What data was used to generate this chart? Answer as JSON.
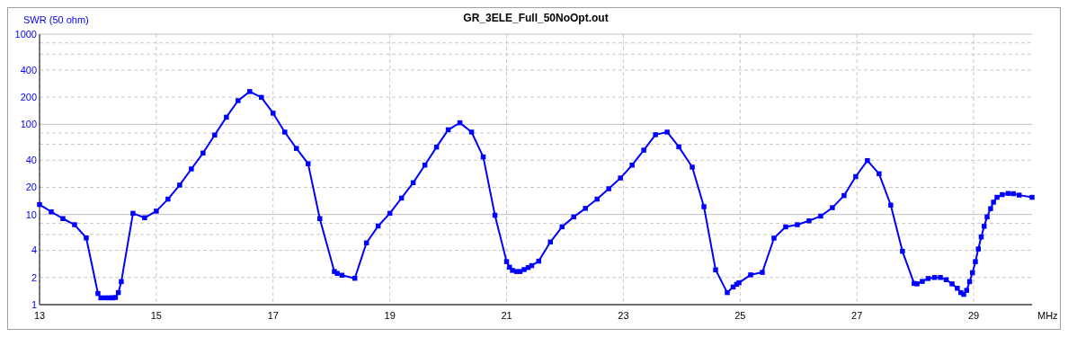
{
  "chart_data": {
    "type": "line",
    "title": "GR_3ELE_Full_50NoOpt.out",
    "xlabel": "MHz",
    "ylabel": "SWR (50 ohm)",
    "log": "y",
    "grid": true,
    "marker": "square",
    "line_style": "solid",
    "xlim": [
      13,
      30
    ],
    "xticks": [
      13,
      15,
      17,
      19,
      21,
      23,
      25,
      27,
      29
    ],
    "ylim": [
      1,
      1000
    ],
    "yticks": [
      1,
      2,
      4,
      {
        "value": 6,
        "label": null
      },
      {
        "value": 8,
        "label": null
      },
      10,
      20,
      40,
      {
        "value": 60,
        "label": null
      },
      {
        "value": 80,
        "label": null
      },
      100,
      200,
      400,
      {
        "value": 600,
        "label": null
      },
      {
        "value": 800,
        "label": null
      },
      1000
    ],
    "series": [
      {
        "color": "#0000ff",
        "x": [
          13,
          13.2,
          13.4,
          13.6,
          13.8,
          14,
          14.05,
          14.13,
          14.2,
          14.25,
          14.3,
          14.35,
          14.4,
          14.6,
          14.8,
          15,
          15.2,
          15.4,
          15.6,
          15.8,
          16,
          16.2,
          16.4,
          16.6,
          16.8,
          17,
          17.2,
          17.4,
          17.6,
          17.8,
          18.05,
          18.1,
          18.18,
          18.4,
          18.6,
          18.8,
          19,
          19.2,
          19.4,
          19.6,
          19.8,
          20,
          20.2,
          20.4,
          20.6,
          20.8,
          21,
          21.05,
          21.1,
          21.17,
          21.23,
          21.3,
          21.37,
          21.43,
          21.55,
          21.75,
          21.95,
          22.15,
          22.35,
          22.55,
          22.75,
          22.95,
          23.15,
          23.35,
          23.55,
          23.75,
          23.95,
          24.18,
          24.38,
          24.58,
          24.78,
          24.88,
          24.94,
          24.98,
          25.18,
          25.38,
          25.58,
          25.78,
          25.98,
          26.18,
          26.38,
          26.58,
          26.78,
          26.98,
          27.18,
          27.38,
          27.58,
          27.78,
          27.98,
          28.03,
          28.12,
          28.22,
          28.33,
          28.43,
          28.53,
          28.63,
          28.72,
          28.78,
          28.83,
          28.88,
          28.93,
          28.98,
          29.03,
          29.08,
          29.13,
          29.18,
          29.23,
          29.29,
          29.34,
          29.4,
          29.49,
          29.59,
          29.68,
          29.78,
          30
        ],
        "values": [
          12.9,
          10.7,
          9,
          7.7,
          5.5,
          1.33,
          1.19,
          1.19,
          1.19,
          1.19,
          1.2,
          1.36,
          1.8,
          10.3,
          9.2,
          10.9,
          14.8,
          21.2,
          32,
          48,
          76,
          120,
          183,
          231,
          199,
          133,
          82,
          54,
          36.6,
          9,
          2.33,
          2.22,
          2.12,
          1.96,
          4.84,
          7.45,
          10.3,
          15.2,
          22.5,
          35.3,
          56,
          87,
          104,
          82,
          43.5,
          9.8,
          3,
          2.6,
          2.4,
          2.33,
          2.33,
          2.45,
          2.58,
          2.71,
          3.04,
          4.95,
          7.3,
          9.4,
          11.7,
          14.8,
          19.3,
          25.4,
          35.3,
          51.7,
          76.7,
          82,
          56.3,
          33.5,
          12.2,
          2.43,
          1.36,
          1.57,
          1.68,
          1.75,
          2.14,
          2.28,
          5.47,
          7.29,
          7.7,
          8.5,
          9.6,
          11.9,
          16.2,
          26.3,
          39.6,
          28.3,
          12.7,
          3.91,
          1.72,
          1.7,
          1.81,
          1.95,
          2,
          2,
          1.89,
          1.7,
          1.52,
          1.36,
          1.3,
          1.44,
          1.8,
          2.26,
          3,
          4.14,
          5.63,
          7.4,
          9.4,
          11.6,
          13.7,
          15.5,
          16.6,
          17.1,
          17,
          16.4,
          15.5
        ]
      }
    ]
  }
}
